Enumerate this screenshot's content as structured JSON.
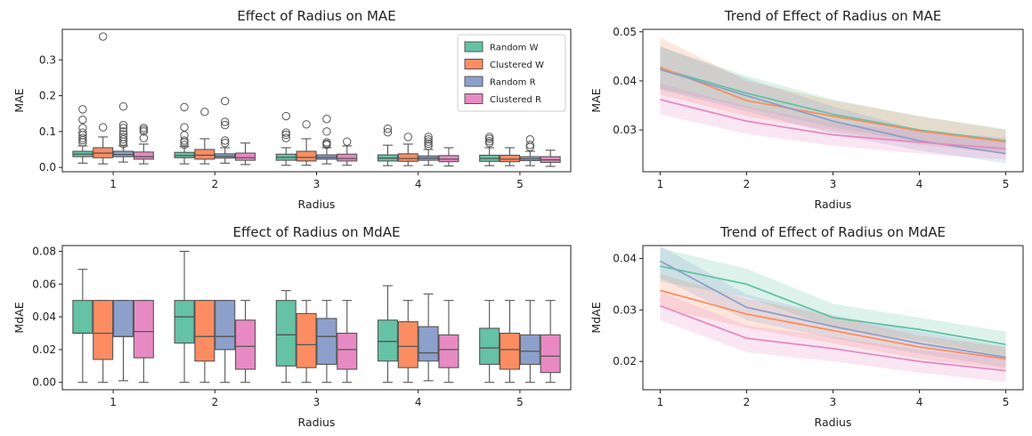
{
  "colors": {
    "Random W": "#66c2a5",
    "Clustered W": "#fc8d62",
    "Random R": "#8da0cb",
    "Clustered R": "#e78ac3"
  },
  "legend": {
    "placement": "top-right",
    "entries": [
      "Random W",
      "Clustered W",
      "Random R",
      "Clustered R"
    ]
  },
  "chart_data": [
    {
      "type": "box",
      "title": "Effect of Radius on MAE",
      "xlabel": "Radius",
      "ylabel": "MAE",
      "categories": [
        "1",
        "2",
        "3",
        "4",
        "5"
      ],
      "yticks": [
        0.0,
        0.1,
        0.2,
        0.3
      ],
      "ytick_labels": [
        "0.0",
        "0.1",
        "0.2",
        "0.3"
      ],
      "ylim": [
        -0.012,
        0.385
      ],
      "legend": true,
      "series": [
        {
          "name": "Random W",
          "boxes": [
            {
              "q1": 0.03,
              "median": 0.037,
              "q3": 0.045,
              "lo": 0.012,
              "hi": 0.06,
              "outliers": [
                0.07,
                0.076,
                0.082,
                0.09,
                0.097,
                0.11,
                0.133,
                0.162
              ]
            },
            {
              "q1": 0.027,
              "median": 0.033,
              "q3": 0.042,
              "lo": 0.01,
              "hi": 0.058,
              "outliers": [
                0.063,
                0.07,
                0.075,
                0.09,
                0.112,
                0.168
              ]
            },
            {
              "q1": 0.02,
              "median": 0.028,
              "q3": 0.037,
              "lo": 0.006,
              "hi": 0.055,
              "outliers": [
                0.082,
                0.091,
                0.097,
                0.143
              ]
            },
            {
              "q1": 0.018,
              "median": 0.026,
              "q3": 0.035,
              "lo": 0.005,
              "hi": 0.062,
              "outliers": [
                0.098,
                0.108
              ]
            },
            {
              "q1": 0.017,
              "median": 0.025,
              "q3": 0.034,
              "lo": 0.005,
              "hi": 0.055,
              "outliers": [
                0.068,
                0.073,
                0.08,
                0.085
              ]
            }
          ]
        },
        {
          "name": "Clustered W",
          "boxes": [
            {
              "q1": 0.027,
              "median": 0.04,
              "q3": 0.055,
              "lo": 0.01,
              "hi": 0.085,
              "outliers": [
                0.112,
                0.365
              ]
            },
            {
              "q1": 0.023,
              "median": 0.034,
              "q3": 0.05,
              "lo": 0.01,
              "hi": 0.08,
              "outliers": [
                0.155
              ]
            },
            {
              "q1": 0.018,
              "median": 0.028,
              "q3": 0.045,
              "lo": 0.006,
              "hi": 0.08,
              "outliers": [
                0.12
              ]
            },
            {
              "q1": 0.017,
              "median": 0.025,
              "q3": 0.038,
              "lo": 0.005,
              "hi": 0.065,
              "outliers": [
                0.085
              ]
            },
            {
              "q1": 0.016,
              "median": 0.023,
              "q3": 0.034,
              "lo": 0.005,
              "hi": 0.055,
              "outliers": []
            }
          ]
        },
        {
          "name": "Random R",
          "boxes": [
            {
              "q1": 0.03,
              "median": 0.036,
              "q3": 0.045,
              "lo": 0.015,
              "hi": 0.06,
              "outliers": [
                0.065,
                0.072,
                0.078,
                0.085,
                0.092,
                0.1,
                0.11,
                0.118,
                0.17
              ]
            },
            {
              "q1": 0.026,
              "median": 0.031,
              "q3": 0.038,
              "lo": 0.012,
              "hi": 0.055,
              "outliers": [
                0.068,
                0.075,
                0.118,
                0.127,
                0.185
              ]
            },
            {
              "q1": 0.023,
              "median": 0.028,
              "q3": 0.035,
              "lo": 0.01,
              "hi": 0.055,
              "outliers": [
                0.063,
                0.066,
                0.07,
                0.1,
                0.135
              ]
            },
            {
              "q1": 0.02,
              "median": 0.026,
              "q3": 0.032,
              "lo": 0.006,
              "hi": 0.05,
              "outliers": [
                0.06,
                0.066,
                0.072,
                0.078,
                0.085
              ]
            },
            {
              "q1": 0.019,
              "median": 0.024,
              "q3": 0.03,
              "lo": 0.005,
              "hi": 0.045,
              "outliers": [
                0.057,
                0.063,
                0.078
              ]
            }
          ]
        },
        {
          "name": "Clustered R",
          "boxes": [
            {
              "q1": 0.023,
              "median": 0.03,
              "q3": 0.043,
              "lo": 0.01,
              "hi": 0.065,
              "outliers": [
                0.082,
                0.1,
                0.105,
                0.11
              ]
            },
            {
              "q1": 0.02,
              "median": 0.027,
              "q3": 0.04,
              "lo": 0.008,
              "hi": 0.068,
              "outliers": []
            },
            {
              "q1": 0.018,
              "median": 0.025,
              "q3": 0.037,
              "lo": 0.006,
              "hi": 0.06,
              "outliers": [
                0.072
              ]
            },
            {
              "q1": 0.016,
              "median": 0.023,
              "q3": 0.033,
              "lo": 0.004,
              "hi": 0.055,
              "outliers": []
            },
            {
              "q1": 0.014,
              "median": 0.021,
              "q3": 0.03,
              "lo": 0.003,
              "hi": 0.048,
              "outliers": []
            }
          ]
        }
      ]
    },
    {
      "type": "line",
      "title": "Trend of Effect of Radius on MAE",
      "xlabel": "Radius",
      "ylabel": "MAE",
      "x": [
        1,
        2,
        3,
        4,
        5
      ],
      "xtick_labels": [
        "1",
        "2",
        "3",
        "4",
        "5"
      ],
      "yticks": [
        0.03,
        0.04,
        0.05
      ],
      "ytick_labels": [
        "0.03",
        "0.04",
        "0.05"
      ],
      "xlim": [
        0.8,
        5.2
      ],
      "ylim": [
        0.0215,
        0.0505
      ],
      "series": [
        {
          "name": "Random W",
          "values": [
            0.0425,
            0.0375,
            0.0332,
            0.03,
            0.0278
          ],
          "lower": [
            0.0385,
            0.0345,
            0.0305,
            0.0275,
            0.0255
          ],
          "upper": [
            0.047,
            0.041,
            0.0362,
            0.0328,
            0.0302
          ]
        },
        {
          "name": "Clustered W",
          "values": [
            0.0428,
            0.036,
            0.0328,
            0.0298,
            0.0276
          ],
          "lower": [
            0.0372,
            0.0328,
            0.0298,
            0.027,
            0.0252
          ],
          "upper": [
            0.0488,
            0.04,
            0.036,
            0.0328,
            0.03
          ]
        },
        {
          "name": "Random R",
          "values": [
            0.0423,
            0.037,
            0.0318,
            0.0278,
            0.0252
          ],
          "lower": [
            0.0382,
            0.0338,
            0.0292,
            0.0258,
            0.0232
          ],
          "upper": [
            0.047,
            0.0405,
            0.0348,
            0.03,
            0.0275
          ]
        },
        {
          "name": "Clustered R",
          "values": [
            0.0362,
            0.0318,
            0.029,
            0.0275,
            0.0262
          ],
          "lower": [
            0.0332,
            0.0292,
            0.0268,
            0.0252,
            0.024
          ],
          "upper": [
            0.0395,
            0.0348,
            0.0315,
            0.0298,
            0.0285
          ]
        }
      ]
    },
    {
      "type": "box",
      "title": "Effect of Radius on MdAE",
      "xlabel": "Radius",
      "ylabel": "MdAE",
      "categories": [
        "1",
        "2",
        "3",
        "4",
        "5"
      ],
      "yticks": [
        0.0,
        0.02,
        0.04,
        0.06,
        0.08
      ],
      "ytick_labels": [
        "0.00",
        "0.02",
        "0.04",
        "0.06",
        "0.08"
      ],
      "ylim": [
        -0.0045,
        0.0835
      ],
      "legend": false,
      "series": [
        {
          "name": "Random W",
          "boxes": [
            {
              "q1": 0.03,
              "median": 0.03,
              "q3": 0.05,
              "lo": 0.0,
              "hi": 0.069,
              "outliers": []
            },
            {
              "q1": 0.024,
              "median": 0.04,
              "q3": 0.05,
              "lo": 0.0,
              "hi": 0.08,
              "outliers": []
            },
            {
              "q1": 0.01,
              "median": 0.029,
              "q3": 0.05,
              "lo": 0.0,
              "hi": 0.056,
              "outliers": []
            },
            {
              "q1": 0.013,
              "median": 0.025,
              "q3": 0.038,
              "lo": 0.0,
              "hi": 0.059,
              "outliers": []
            },
            {
              "q1": 0.011,
              "median": 0.021,
              "q3": 0.033,
              "lo": 0.0,
              "hi": 0.05,
              "outliers": []
            }
          ]
        },
        {
          "name": "Clustered W",
          "boxes": [
            {
              "q1": 0.014,
              "median": 0.03,
              "q3": 0.05,
              "lo": 0.0,
              "hi": 0.05,
              "outliers": []
            },
            {
              "q1": 0.013,
              "median": 0.028,
              "q3": 0.05,
              "lo": 0.0,
              "hi": 0.05,
              "outliers": []
            },
            {
              "q1": 0.009,
              "median": 0.023,
              "q3": 0.042,
              "lo": 0.0,
              "hi": 0.05,
              "outliers": []
            },
            {
              "q1": 0.009,
              "median": 0.022,
              "q3": 0.037,
              "lo": 0.0,
              "hi": 0.05,
              "outliers": []
            },
            {
              "q1": 0.008,
              "median": 0.02,
              "q3": 0.03,
              "lo": 0.0,
              "hi": 0.05,
              "outliers": []
            }
          ]
        },
        {
          "name": "Random R",
          "boxes": [
            {
              "q1": 0.028,
              "median": 0.028,
              "q3": 0.05,
              "lo": 0.001,
              "hi": 0.05,
              "outliers": []
            },
            {
              "q1": 0.02,
              "median": 0.028,
              "q3": 0.05,
              "lo": 0.0,
              "hi": 0.05,
              "outliers": []
            },
            {
              "q1": 0.011,
              "median": 0.028,
              "q3": 0.039,
              "lo": 0.0,
              "hi": 0.05,
              "outliers": []
            },
            {
              "q1": 0.013,
              "median": 0.018,
              "q3": 0.034,
              "lo": 0.001,
              "hi": 0.054,
              "outliers": []
            },
            {
              "q1": 0.011,
              "median": 0.019,
              "q3": 0.029,
              "lo": 0.0,
              "hi": 0.05,
              "outliers": []
            }
          ]
        },
        {
          "name": "Clustered R",
          "boxes": [
            {
              "q1": 0.015,
              "median": 0.031,
              "q3": 0.05,
              "lo": 0.0,
              "hi": 0.05,
              "outliers": []
            },
            {
              "q1": 0.008,
              "median": 0.022,
              "q3": 0.038,
              "lo": 0.0,
              "hi": 0.05,
              "outliers": []
            },
            {
              "q1": 0.008,
              "median": 0.02,
              "q3": 0.03,
              "lo": 0.0,
              "hi": 0.05,
              "outliers": []
            },
            {
              "q1": 0.009,
              "median": 0.02,
              "q3": 0.029,
              "lo": 0.0,
              "hi": 0.05,
              "outliers": []
            },
            {
              "q1": 0.006,
              "median": 0.016,
              "q3": 0.029,
              "lo": 0.0,
              "hi": 0.05,
              "outliers": []
            }
          ]
        }
      ]
    },
    {
      "type": "line",
      "title": "Trend of Effect of Radius on MdAE",
      "xlabel": "Radius",
      "ylabel": "MdAE",
      "x": [
        1,
        2,
        3,
        4,
        5
      ],
      "xtick_labels": [
        "1",
        "2",
        "3",
        "4",
        "5"
      ],
      "yticks": [
        0.02,
        0.03,
        0.04
      ],
      "ytick_labels": [
        "0.02",
        "0.03",
        "0.04"
      ],
      "xlim": [
        0.8,
        5.2
      ],
      "ylim": [
        0.0145,
        0.0425
      ],
      "series": [
        {
          "name": "Random W",
          "values": [
            0.0385,
            0.035,
            0.0285,
            0.0262,
            0.0233
          ],
          "lower": [
            0.0355,
            0.0325,
            0.0265,
            0.024,
            0.021
          ],
          "upper": [
            0.042,
            0.038,
            0.0312,
            0.0285,
            0.0258
          ]
        },
        {
          "name": "Clustered W",
          "values": [
            0.0338,
            0.0292,
            0.026,
            0.0228,
            0.0205
          ],
          "lower": [
            0.0305,
            0.0265,
            0.0235,
            0.0205,
            0.0185
          ],
          "upper": [
            0.037,
            0.0322,
            0.0288,
            0.025,
            0.0228
          ]
        },
        {
          "name": "Random R",
          "values": [
            0.0395,
            0.0305,
            0.0268,
            0.0235,
            0.0208
          ],
          "lower": [
            0.0362,
            0.028,
            0.0245,
            0.0215,
            0.0188
          ],
          "upper": [
            0.0425,
            0.033,
            0.029,
            0.0258,
            0.023
          ]
        },
        {
          "name": "Clustered R",
          "values": [
            0.0308,
            0.0245,
            0.0225,
            0.02,
            0.0182
          ],
          "lower": [
            0.028,
            0.0218,
            0.02,
            0.0178,
            0.016
          ],
          "upper": [
            0.0335,
            0.027,
            0.0248,
            0.0222,
            0.0205
          ]
        }
      ]
    }
  ]
}
